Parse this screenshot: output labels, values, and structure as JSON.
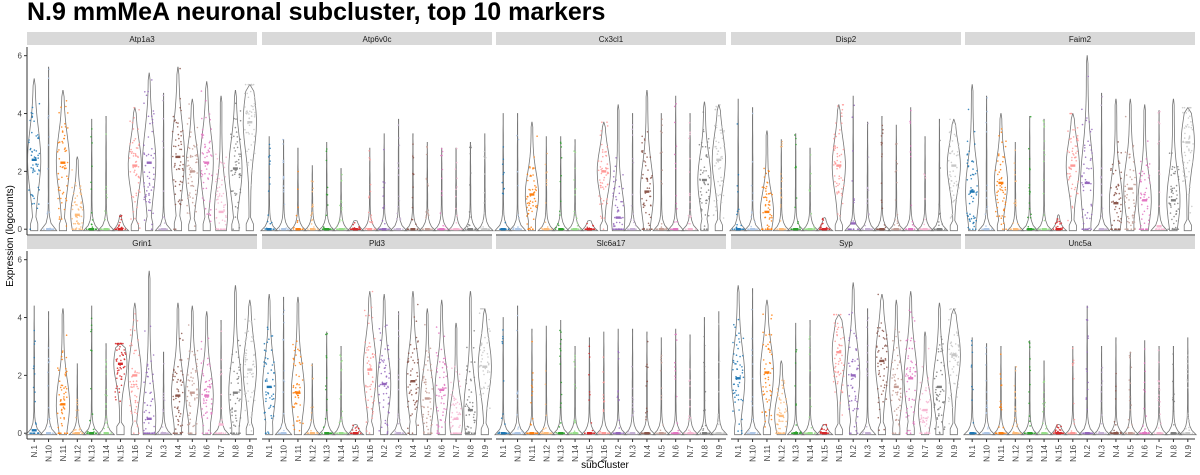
{
  "title": "N.9 mmMeA neuronal subcluster, top 10 markers",
  "chart_data": {
    "type": "violin",
    "title": "N.9 mmMeA neuronal subcluster, top 10 markers",
    "xlabel": "subCluster",
    "ylabel": "Expression (logcounts)",
    "ylim": [
      -0.2,
      6.3
    ],
    "yticks": [
      0,
      2,
      4,
      6
    ],
    "grid": false,
    "legend": "none",
    "categories": [
      "N.1",
      "N.10",
      "N.11",
      "N.12",
      "N.13",
      "N.14",
      "N.15",
      "N.16",
      "N.2",
      "N.3",
      "N.4",
      "N.5",
      "N.6",
      "N.7",
      "N.8",
      "N.9"
    ],
    "colors": [
      "#1f77b4",
      "#aec7e8",
      "#ff7f0e",
      "#ffbb78",
      "#2ca02c",
      "#98df8a",
      "#d62728",
      "#ff9896",
      "#9467bd",
      "#c5b0d5",
      "#8c564b",
      "#c49c94",
      "#e377c2",
      "#f7b6d2",
      "#7f7f7f",
      "#c7c7c7"
    ],
    "panels": [
      {
        "gene": "Atp1a3",
        "medians": [
          2.4,
          0.0,
          2.3,
          0.5,
          0.0,
          0.0,
          0.0,
          2.2,
          2.3,
          0.0,
          2.5,
          2.0,
          2.3,
          0.6,
          2.1,
          3.7
        ],
        "maxima": [
          5.2,
          5.6,
          4.8,
          2.5,
          3.8,
          3.9,
          0.5,
          4.2,
          5.4,
          4.7,
          5.6,
          4.5,
          5.1,
          4.6,
          4.8,
          5.0
        ]
      },
      {
        "gene": "Atp6v0c",
        "medians": [
          0,
          0,
          0,
          0,
          0,
          0,
          0,
          0,
          0,
          0,
          0,
          0,
          0,
          0,
          0,
          0
        ],
        "maxima": [
          3.2,
          3.1,
          2.8,
          2.2,
          3.0,
          2.1,
          0.3,
          2.8,
          3.3,
          3.8,
          3.3,
          3.0,
          2.8,
          2.8,
          3.0,
          3.3
        ]
      },
      {
        "gene": "Cx3cl1",
        "medians": [
          0.0,
          0.0,
          1.2,
          0.0,
          0.0,
          0.0,
          0.0,
          2.0,
          0.4,
          0.0,
          1.3,
          0.0,
          0.0,
          0.0,
          1.7,
          2.4
        ],
        "maxima": [
          4.0,
          4.0,
          3.7,
          3.2,
          3.2,
          3.1,
          0.3,
          3.7,
          4.3,
          4.0,
          4.8,
          4.0,
          4.6,
          4.0,
          4.4,
          4.3
        ]
      },
      {
        "gene": "Disp2",
        "medians": [
          0.0,
          0.0,
          0.6,
          0.0,
          0.0,
          0.0,
          0.0,
          2.2,
          0.2,
          0.0,
          0.0,
          0.0,
          0.0,
          0.0,
          0.0,
          2.2
        ],
        "maxima": [
          4.5,
          4.2,
          3.4,
          3.1,
          3.3,
          2.8,
          0.4,
          4.3,
          4.6,
          3.7,
          3.9,
          3.6,
          4.2,
          3.2,
          3.8,
          3.8
        ]
      },
      {
        "gene": "Faim2",
        "medians": [
          1.3,
          0.0,
          1.6,
          0.0,
          0.0,
          0.0,
          0.0,
          2.2,
          1.6,
          0.0,
          0.9,
          1.4,
          1.0,
          0.1,
          1.0,
          3.0
        ],
        "maxima": [
          5.0,
          4.6,
          4.0,
          3.0,
          3.9,
          3.8,
          0.5,
          4.0,
          6.0,
          4.7,
          4.5,
          4.5,
          4.3,
          4.1,
          4.5,
          4.2
        ]
      },
      {
        "gene": "Grin1",
        "medians": [
          0.1,
          0.0,
          1.0,
          0.0,
          0.0,
          0.0,
          2.4,
          2.0,
          0.5,
          0.0,
          1.3,
          1.4,
          1.3,
          0.3,
          1.4,
          2.2
        ],
        "maxima": [
          4.4,
          4.2,
          4.3,
          2.4,
          4.4,
          3.1,
          3.1,
          4.5,
          5.6,
          2.8,
          4.5,
          4.4,
          4.2,
          3.9,
          5.1,
          4.6
        ]
      },
      {
        "gene": "Pld3",
        "medians": [
          1.6,
          0.0,
          1.4,
          0.0,
          0.0,
          0.0,
          0.0,
          2.2,
          1.7,
          0.0,
          1.8,
          1.2,
          1.5,
          0.5,
          0.8,
          2.3
        ],
        "maxima": [
          4.8,
          4.7,
          4.7,
          2.4,
          3.5,
          3.0,
          0.3,
          4.9,
          4.8,
          4.2,
          4.9,
          4.3,
          4.6,
          3.8,
          4.9,
          4.3
        ]
      },
      {
        "gene": "Slc6a17",
        "medians": [
          0,
          0,
          0,
          0,
          0,
          0,
          0,
          0,
          0,
          0,
          0,
          0,
          0,
          0,
          0,
          0
        ],
        "maxima": [
          4.0,
          4.4,
          3.6,
          3.7,
          3.9,
          3.0,
          3.3,
          3.5,
          3.6,
          3.6,
          3.5,
          3.3,
          3.6,
          3.4,
          4.0,
          4.2
        ]
      },
      {
        "gene": "Syp",
        "medians": [
          1.9,
          0.0,
          2.1,
          0.6,
          0.0,
          0.0,
          0.0,
          2.8,
          2.0,
          0.0,
          2.5,
          1.6,
          1.9,
          0.8,
          1.6,
          2.7
        ],
        "maxima": [
          5.1,
          5.0,
          4.6,
          2.5,
          3.8,
          3.9,
          0.3,
          4.1,
          5.2,
          4.3,
          4.8,
          4.6,
          4.9,
          3.5,
          4.5,
          4.3
        ]
      },
      {
        "gene": "Unc5a",
        "medians": [
          0,
          0,
          0,
          0,
          0,
          0,
          0,
          0,
          0,
          0,
          0,
          0,
          0,
          0,
          0,
          0
        ],
        "maxima": [
          3.3,
          3.1,
          3.0,
          2.3,
          3.2,
          2.5,
          0.3,
          3.0,
          4.4,
          3.0,
          3.3,
          2.8,
          3.2,
          3.0,
          3.0,
          3.3
        ]
      }
    ]
  }
}
